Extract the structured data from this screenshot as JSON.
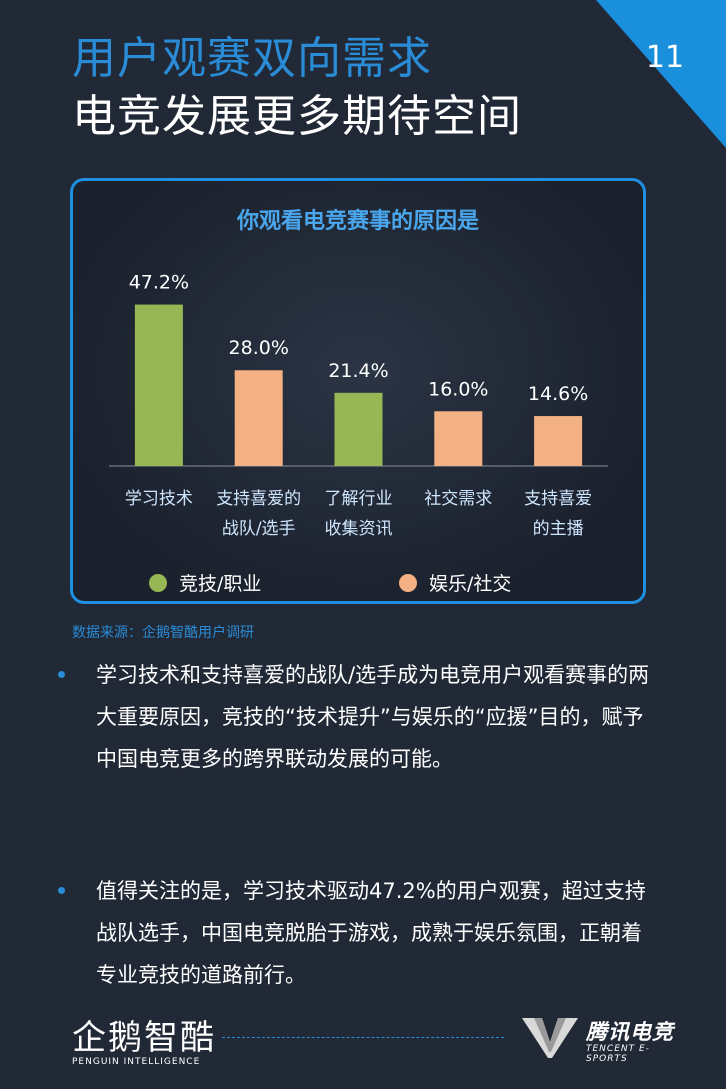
{
  "header": {
    "title_line1": "用户观赛双向需求",
    "title_line2": "电竞发展更多期待空间",
    "page_number": "11"
  },
  "colors": {
    "accent_blue": "#2a8cd6",
    "competitive_green": "#97b755",
    "entertainment_orange": "#f4b183"
  },
  "chart_data": {
    "type": "bar",
    "title": "你观看电竞赛事的原因是",
    "categories": [
      [
        "学习技术"
      ],
      [
        "支持喜爱的",
        "战队/选手"
      ],
      [
        "了解行业",
        "收集资讯"
      ],
      [
        "社交需求"
      ],
      [
        "支持喜爱",
        "的主播"
      ]
    ],
    "values": [
      47.2,
      28.0,
      21.4,
      16.0,
      14.6
    ],
    "value_labels": [
      "47.2%",
      "28.0%",
      "21.4%",
      "16.0%",
      "14.6%"
    ],
    "groups": [
      "competitive",
      "entertainment",
      "competitive",
      "entertainment",
      "entertainment"
    ],
    "ylim": [
      0,
      50
    ],
    "grid": false,
    "legend": [
      {
        "key": "competitive",
        "label": "竞技/职业"
      },
      {
        "key": "entertainment",
        "label": "娱乐/社交"
      }
    ],
    "legend_position": "bottom"
  },
  "source": "数据来源：企鹅智酷用户调研",
  "bullets": [
    "学习技术和支持喜爱的战队/选手成为电竞用户观看赛事的两大重要原因，竞技的“技术提升”与娱乐的“应援”目的，赋予中国电竞更多的跨界联动发展的可能。",
    "值得关注的是，学习技术驱动47.2%的用户观赛，超过支持战队选手，中国电竞脱胎于游戏，成熟于娱乐氛围，正朝着专业竞技的道路前行。"
  ],
  "footer": {
    "left_logo": "企鹅智酷",
    "left_logo_sub": "PENGUIN INTELLIGENCE",
    "right_logo": "腾讯电竞",
    "right_logo_sub": "TENCENT E-SPORTS"
  }
}
